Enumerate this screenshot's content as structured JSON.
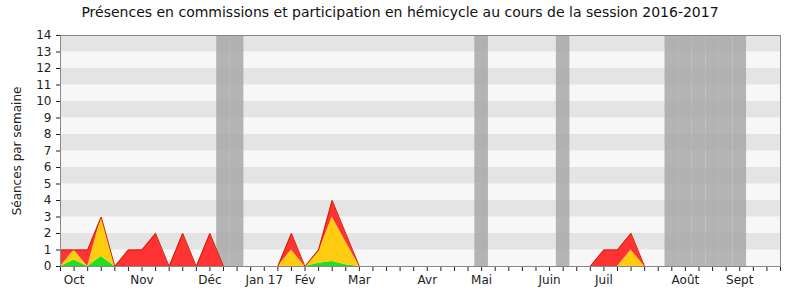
{
  "chart_data": {
    "type": "area",
    "title": "Présences en commissions et participation en hémicycle au cours de la session 2016-2017",
    "y_label": "Séances par semaine",
    "stacked": true,
    "grid": true,
    "ylim": [
      0,
      14
    ],
    "yticks": [
      0,
      1,
      2,
      3,
      4,
      5,
      6,
      7,
      8,
      9,
      10,
      11,
      12,
      13,
      14
    ],
    "categories": [
      null,
      "Oct",
      null,
      null,
      null,
      null,
      "Nov",
      null,
      null,
      null,
      null,
      "Déc",
      null,
      null,
      null,
      "Jan 17",
      null,
      null,
      "Fév",
      null,
      null,
      null,
      "Mar",
      null,
      null,
      null,
      null,
      "Avr",
      null,
      null,
      null,
      "Mai",
      null,
      null,
      null,
      null,
      "Juin",
      null,
      null,
      null,
      "Juil",
      null,
      null,
      null,
      null,
      null,
      "Août",
      null,
      null,
      null,
      "Sept",
      null,
      null,
      null
    ],
    "shaded": [
      false,
      false,
      false,
      false,
      false,
      false,
      false,
      false,
      false,
      false,
      false,
      false,
      true,
      true,
      false,
      false,
      false,
      false,
      false,
      false,
      false,
      false,
      false,
      false,
      false,
      false,
      false,
      false,
      false,
      false,
      false,
      true,
      false,
      false,
      false,
      false,
      false,
      true,
      false,
      false,
      false,
      false,
      false,
      false,
      false,
      true,
      true,
      true,
      true,
      true,
      true,
      false,
      false,
      false
    ],
    "series": [
      {
        "color": "#22dd22",
        "values": [
          0,
          0.4,
          0,
          0.6,
          0,
          0,
          0,
          0,
          0,
          0,
          0,
          0,
          0,
          0,
          0,
          0,
          0,
          0,
          0,
          0.2,
          0.3,
          0.1,
          0,
          0,
          0,
          0,
          0,
          0,
          0,
          0,
          0,
          0,
          0,
          0,
          0,
          0,
          0,
          0,
          0,
          0,
          0,
          0,
          0,
          0,
          0,
          0,
          0,
          0,
          0,
          0,
          0,
          0,
          0,
          0
        ]
      },
      {
        "color": "#ffcc11",
        "values": [
          0,
          0.6,
          0,
          2.4,
          0,
          0,
          0,
          0,
          0,
          0,
          0,
          0,
          0,
          0,
          0,
          0,
          0,
          1,
          0,
          0.7,
          2.7,
          1.4,
          0,
          0,
          0,
          0,
          0,
          0,
          0,
          0,
          0,
          0,
          0,
          0,
          0,
          0,
          0,
          0,
          0,
          0,
          0,
          0,
          1,
          0,
          0,
          0,
          0,
          0,
          0,
          0,
          0,
          0,
          0,
          0
        ]
      },
      {
        "color": "#ff3333",
        "values": [
          1,
          0,
          1,
          0,
          0,
          1,
          1,
          2,
          0,
          2,
          0,
          2,
          0,
          0,
          0,
          0,
          0,
          1,
          0,
          0.1,
          1,
          0.5,
          0,
          0,
          0,
          0,
          0,
          0,
          0,
          0,
          0,
          0,
          0,
          0,
          0,
          0,
          0,
          0,
          0,
          0,
          1,
          1,
          1,
          0,
          0,
          0,
          0,
          0,
          0,
          0,
          0,
          0,
          0,
          0
        ]
      }
    ]
  }
}
